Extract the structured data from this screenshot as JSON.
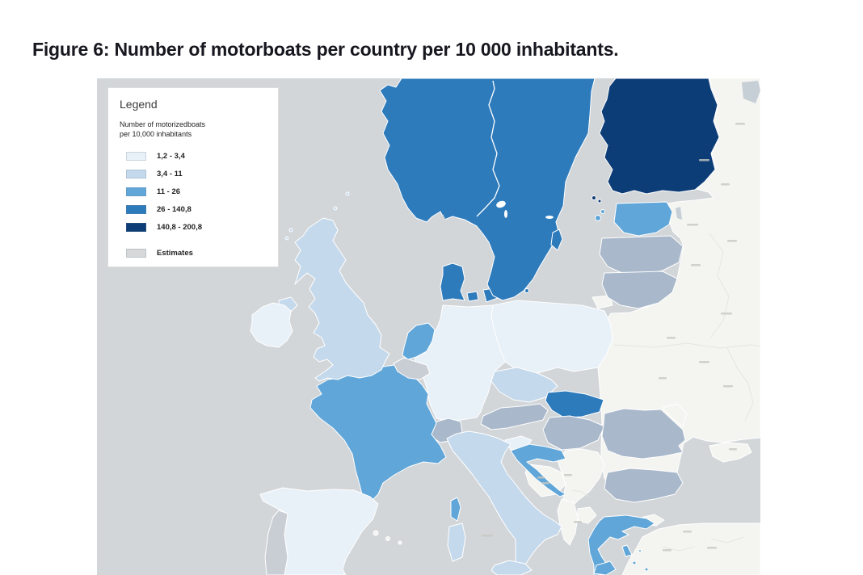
{
  "figure": {
    "title": "Figure 6: Number of motorboats per country per 10 000 inhabitants."
  },
  "legend": {
    "title": "Legend",
    "subtitle_line1": "Number of motorizedboats",
    "subtitle_line2": "per 10,000 inhabitants",
    "classes": [
      {
        "label": "1,2 - 3,4",
        "color_key": "c1"
      },
      {
        "label": "3,4 - 11",
        "color_key": "c2"
      },
      {
        "label": "11 - 26",
        "color_key": "c3"
      },
      {
        "label": "26 - 140,8",
        "color_key": "c4"
      },
      {
        "label": "140,8 - 200,8",
        "color_key": "c5"
      }
    ],
    "estimates": {
      "label": "Estimates",
      "color_key": "est_gray"
    }
  },
  "palette": {
    "c1": "#e8f0f8",
    "c2": "#c5d9ec",
    "c3": "#60a6d8",
    "c4": "#2e7bbc",
    "c5": "#0d3d77",
    "est_blue": "#a9b8ca",
    "est_gray": "#c9ced5",
    "ocean": "#d2d6d9",
    "land": "#f4f4f1",
    "lake": "#c6cfd6"
  },
  "map": {
    "countries": [
      {
        "name": "Finland",
        "range": "140,8 - 200,8",
        "color_key": "c5"
      },
      {
        "name": "Norway",
        "range": "26 - 140,8",
        "color_key": "c4"
      },
      {
        "name": "Sweden",
        "range": "26 - 140,8",
        "color_key": "c4"
      },
      {
        "name": "Denmark",
        "range": "26 - 140,8",
        "color_key": "c4"
      },
      {
        "name": "Slovakia",
        "range": "26 - 140,8",
        "color_key": "c4"
      },
      {
        "name": "France",
        "range": "11 - 26",
        "color_key": "c3"
      },
      {
        "name": "Netherlands",
        "range": "11 - 26",
        "color_key": "c3"
      },
      {
        "name": "Estonia",
        "range": "11 - 26",
        "color_key": "c3"
      },
      {
        "name": "Croatia",
        "range": "11 - 26",
        "color_key": "c3"
      },
      {
        "name": "Greece",
        "range": "11 - 26",
        "color_key": "c3"
      },
      {
        "name": "United Kingdom",
        "range": "3,4 - 11",
        "color_key": "c2"
      },
      {
        "name": "Italy",
        "range": "3,4 - 11",
        "color_key": "c2"
      },
      {
        "name": "Czechia",
        "range": "3,4 - 11",
        "color_key": "c2"
      },
      {
        "name": "Ireland",
        "range": "1,2 - 3,4",
        "color_key": "c1"
      },
      {
        "name": "Spain",
        "range": "1,2 - 3,4",
        "color_key": "c1"
      },
      {
        "name": "Germany",
        "range": "1,2 - 3,4",
        "color_key": "c1"
      },
      {
        "name": "Poland",
        "range": "1,2 - 3,4",
        "color_key": "c1"
      },
      {
        "name": "Slovenia",
        "range": "1,2 - 3,4",
        "color_key": "c1"
      },
      {
        "name": "Belgium",
        "range": "Estimates",
        "color_key": "est_gray"
      },
      {
        "name": "Portugal",
        "range": "Estimates",
        "color_key": "est_gray"
      },
      {
        "name": "Switzerland",
        "range": "Estimates",
        "color_key": "est_blue"
      },
      {
        "name": "Austria",
        "range": "Estimates",
        "color_key": "est_blue"
      },
      {
        "name": "Hungary",
        "range": "Estimates",
        "color_key": "est_blue"
      },
      {
        "name": "Romania",
        "range": "Estimates",
        "color_key": "est_blue"
      },
      {
        "name": "Bulgaria",
        "range": "Estimates",
        "color_key": "est_blue"
      },
      {
        "name": "Latvia",
        "range": "Estimates",
        "color_key": "est_blue"
      },
      {
        "name": "Lithuania",
        "range": "Estimates",
        "color_key": "est_blue"
      }
    ]
  }
}
